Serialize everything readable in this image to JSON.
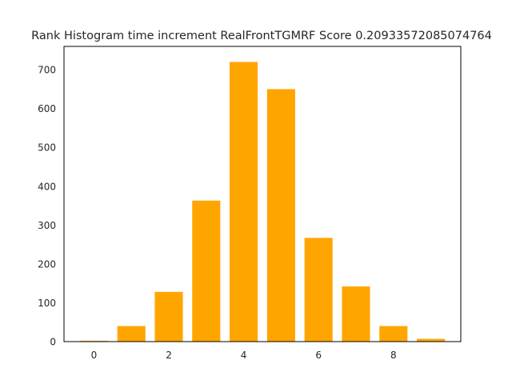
{
  "chart_data": {
    "type": "bar",
    "title": "Rank Histogram time increment RealFrontTGMRF Score 0.20933572085074764",
    "xlabel": "",
    "ylabel": "",
    "x": [
      0,
      1,
      2,
      3,
      4,
      5,
      6,
      7,
      8,
      9
    ],
    "values": [
      2,
      40,
      128,
      363,
      720,
      650,
      267,
      142,
      40,
      7
    ],
    "bar_width": 0.75,
    "xlim": [
      -0.8,
      9.8
    ],
    "ylim": [
      0,
      760
    ],
    "xticks": [
      0,
      2,
      4,
      6,
      8
    ],
    "xtick_labels": [
      "0",
      "2",
      "4",
      "6",
      "8"
    ],
    "yticks": [
      0,
      100,
      200,
      300,
      400,
      500,
      600,
      700
    ],
    "ytick_labels": [
      "0",
      "100",
      "200",
      "300",
      "400",
      "500",
      "600",
      "700"
    ],
    "bar_color": "#ffa500",
    "grid": false,
    "legend": "none"
  }
}
